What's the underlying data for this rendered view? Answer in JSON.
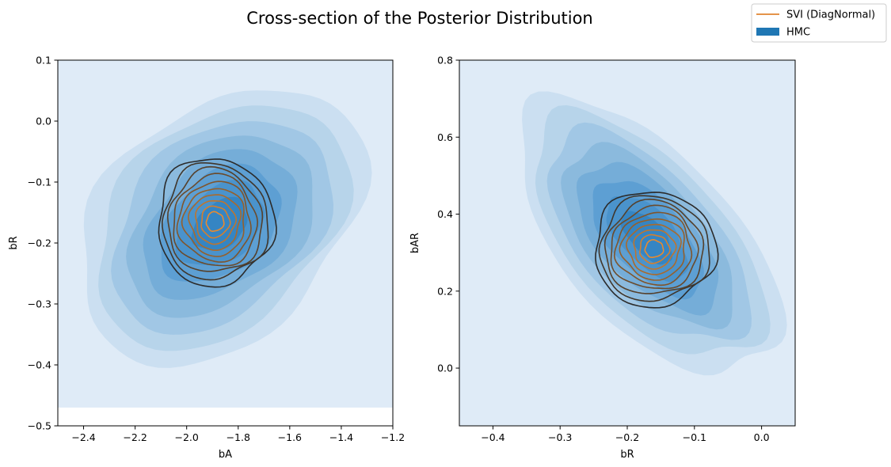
{
  "figure": {
    "title": "Cross-section of the Posterior Distribution",
    "legend": {
      "position": "top-right",
      "entries": [
        {
          "label": "SVI (DiagNormal)",
          "kind": "line",
          "color": "#e08530"
        },
        {
          "label": "HMC",
          "kind": "patch",
          "color": "#1f77b4"
        }
      ]
    }
  },
  "chart_data": [
    {
      "type": "kde_contour",
      "xlabel": "bA",
      "ylabel": "bR",
      "xlim": [
        -2.5,
        -1.2
      ],
      "ylim": [
        -0.5,
        0.1
      ],
      "xticks": [
        -2.4,
        -2.2,
        -2.0,
        -1.8,
        -1.6,
        -1.4,
        -1.2
      ],
      "xtick_labels": [
        "−2.4",
        "−2.2",
        "−2.0",
        "−1.8",
        "−1.6",
        "−1.4",
        "−1.2"
      ],
      "yticks": [
        -0.5,
        -0.4,
        -0.3,
        -0.2,
        -0.1,
        0.0,
        0.1
      ],
      "ytick_labels": [
        "−0.5",
        "−0.4",
        "−0.3",
        "−0.2",
        "−0.1",
        "0.0",
        "0.1"
      ],
      "hmc_fill_floor_y": -0.47,
      "hmc": {
        "mean": [
          -1.87,
          -0.17
        ],
        "sd": [
          0.17,
          0.07
        ],
        "rho": 0.35,
        "levels": 8
      },
      "svi": {
        "mean": [
          -1.89,
          -0.165
        ],
        "sd": [
          0.075,
          0.035
        ],
        "rho": 0.0,
        "levels": 10
      }
    },
    {
      "type": "kde_contour",
      "xlabel": "bR",
      "ylabel": "bAR",
      "xlim": [
        -0.45,
        0.05
      ],
      "ylim": [
        -0.15,
        0.8
      ],
      "xticks": [
        -0.4,
        -0.3,
        -0.2,
        -0.1,
        0.0
      ],
      "xtick_labels": [
        "−0.4",
        "−0.3",
        "−0.2",
        "−0.1",
        "0.0"
      ],
      "yticks": [
        0.0,
        0.2,
        0.4,
        0.6,
        0.8
      ],
      "ytick_labels": [
        "0.0",
        "0.2",
        "0.4",
        "0.6",
        "0.8"
      ],
      "hmc_fill_floor_y": null,
      "hmc": {
        "mean": [
          -0.17,
          0.34
        ],
        "sd": [
          0.06,
          0.11
        ],
        "rho": -0.6,
        "levels": 8
      },
      "svi": {
        "mean": [
          -0.16,
          0.31
        ],
        "sd": [
          0.03,
          0.05
        ],
        "rho": 0.0,
        "levels": 10
      }
    }
  ]
}
